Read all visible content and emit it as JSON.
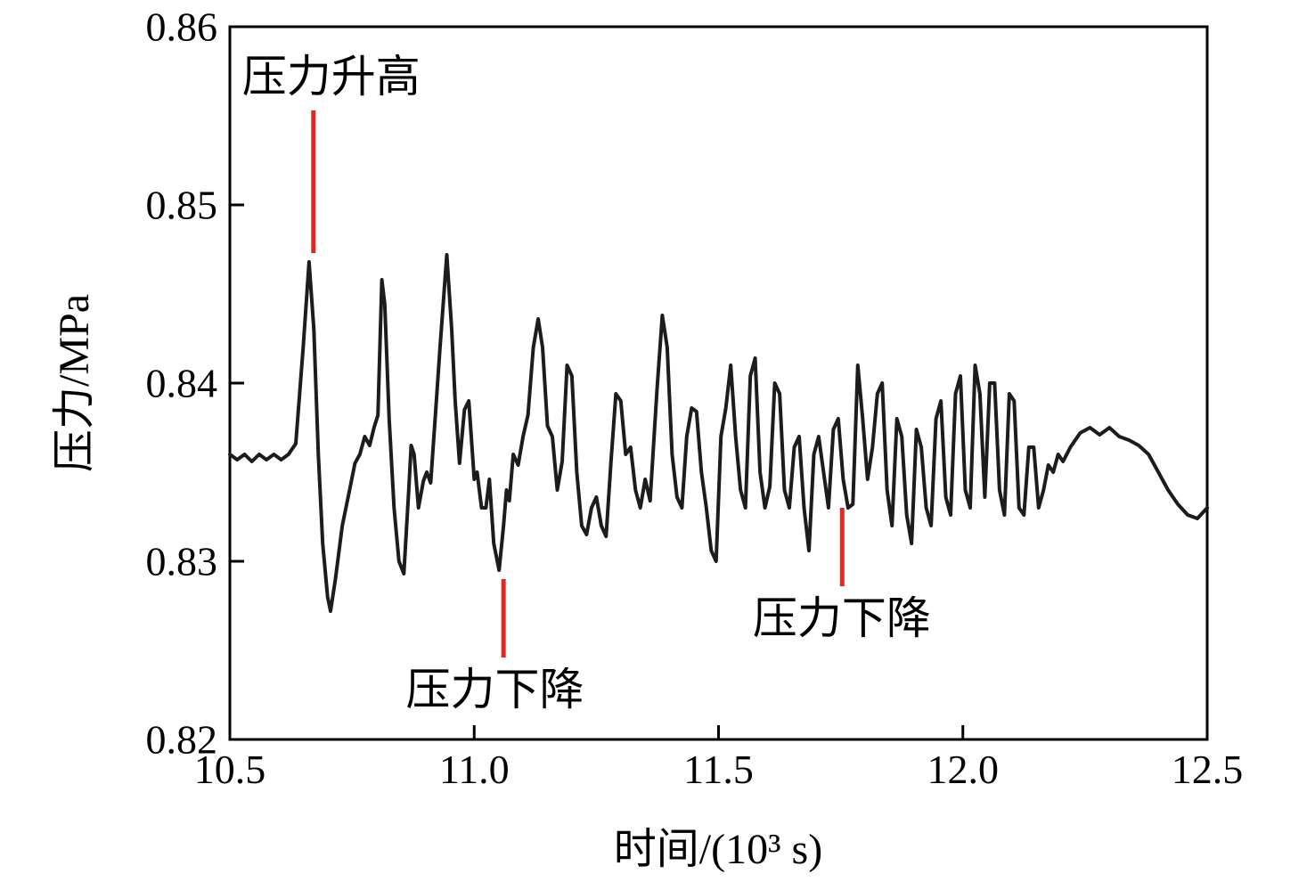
{
  "chart_data": {
    "type": "line",
    "title": "",
    "xlabel": "时间/(10³ s)",
    "ylabel": "压力/MPa",
    "xlim": [
      10.5,
      12.5
    ],
    "ylim": [
      0.82,
      0.86
    ],
    "x_ticks": [
      {
        "v": 10.5,
        "label": "10.5"
      },
      {
        "v": 11.0,
        "label": "11.0"
      },
      {
        "v": 11.5,
        "label": "11.5"
      },
      {
        "v": 12.0,
        "label": "12.0"
      },
      {
        "v": 12.5,
        "label": "12.5"
      }
    ],
    "y_ticks": [
      {
        "v": 0.82,
        "label": "0.82"
      },
      {
        "v": 0.83,
        "label": "0.83"
      },
      {
        "v": 0.84,
        "label": "0.84"
      },
      {
        "v": 0.85,
        "label": "0.85"
      },
      {
        "v": 0.86,
        "label": "0.86"
      }
    ],
    "line_color": "#1c1c1c",
    "grid": false,
    "legend": "none",
    "annotation_color": "#e8261f",
    "annotations": [
      {
        "text": "压力升高",
        "line": {
          "x": 10.671,
          "y1": 0.8553,
          "y2": 0.8473
        },
        "label": {
          "x": 10.525,
          "y": 0.8572
        }
      },
      {
        "text": "压力下降",
        "line": {
          "x": 11.06,
          "y1": 0.829,
          "y2": 0.8246
        },
        "label": {
          "x": 10.86,
          "y": 0.8228
        }
      },
      {
        "text": "压力下降",
        "line": {
          "x": 11.753,
          "y1": 0.833,
          "y2": 0.8286
        },
        "label": {
          "x": 11.57,
          "y": 0.8268
        }
      }
    ],
    "points": [
      [
        10.5,
        0.836
      ],
      [
        10.515,
        0.8357
      ],
      [
        10.53,
        0.836
      ],
      [
        10.545,
        0.8356
      ],
      [
        10.56,
        0.836
      ],
      [
        10.575,
        0.8357
      ],
      [
        10.59,
        0.836
      ],
      [
        10.605,
        0.8357
      ],
      [
        10.62,
        0.836
      ],
      [
        10.635,
        0.8366
      ],
      [
        10.65,
        0.842
      ],
      [
        10.662,
        0.8468
      ],
      [
        10.672,
        0.843
      ],
      [
        10.681,
        0.836
      ],
      [
        10.69,
        0.831
      ],
      [
        10.7,
        0.828
      ],
      [
        10.706,
        0.8272
      ],
      [
        10.716,
        0.829
      ],
      [
        10.73,
        0.832
      ],
      [
        10.745,
        0.834
      ],
      [
        10.756,
        0.8355
      ],
      [
        10.766,
        0.836
      ],
      [
        10.776,
        0.837
      ],
      [
        10.786,
        0.8365
      ],
      [
        10.795,
        0.8375
      ],
      [
        10.803,
        0.8382
      ],
      [
        10.811,
        0.8458
      ],
      [
        10.817,
        0.8444
      ],
      [
        10.826,
        0.838
      ],
      [
        10.836,
        0.833
      ],
      [
        10.846,
        0.83
      ],
      [
        10.856,
        0.8293
      ],
      [
        10.866,
        0.834
      ],
      [
        10.871,
        0.8365
      ],
      [
        10.877,
        0.836
      ],
      [
        10.886,
        0.833
      ],
      [
        10.896,
        0.8345
      ],
      [
        10.903,
        0.835
      ],
      [
        10.911,
        0.8344
      ],
      [
        10.92,
        0.838
      ],
      [
        10.93,
        0.842
      ],
      [
        10.944,
        0.8472
      ],
      [
        10.954,
        0.843
      ],
      [
        10.961,
        0.839
      ],
      [
        10.97,
        0.8355
      ],
      [
        10.98,
        0.8385
      ],
      [
        10.989,
        0.839
      ],
      [
        11.0,
        0.8346
      ],
      [
        11.006,
        0.835
      ],
      [
        11.015,
        0.833
      ],
      [
        11.024,
        0.833
      ],
      [
        11.031,
        0.8346
      ],
      [
        11.04,
        0.831
      ],
      [
        11.051,
        0.8295
      ],
      [
        11.06,
        0.832
      ],
      [
        11.066,
        0.834
      ],
      [
        11.072,
        0.8334
      ],
      [
        11.08,
        0.836
      ],
      [
        11.09,
        0.8354
      ],
      [
        11.1,
        0.837
      ],
      [
        11.11,
        0.8382
      ],
      [
        11.121,
        0.842
      ],
      [
        11.131,
        0.8436
      ],
      [
        11.14,
        0.842
      ],
      [
        11.15,
        0.8376
      ],
      [
        11.16,
        0.837
      ],
      [
        11.17,
        0.834
      ],
      [
        11.18,
        0.8356
      ],
      [
        11.19,
        0.841
      ],
      [
        11.2,
        0.8404
      ],
      [
        11.21,
        0.835
      ],
      [
        11.22,
        0.832
      ],
      [
        11.23,
        0.8315
      ],
      [
        11.24,
        0.833
      ],
      [
        11.25,
        0.8336
      ],
      [
        11.26,
        0.832
      ],
      [
        11.27,
        0.8314
      ],
      [
        11.28,
        0.8356
      ],
      [
        11.29,
        0.8394
      ],
      [
        11.3,
        0.839
      ],
      [
        11.31,
        0.836
      ],
      [
        11.32,
        0.8364
      ],
      [
        11.33,
        0.834
      ],
      [
        11.34,
        0.833
      ],
      [
        11.35,
        0.8346
      ],
      [
        11.36,
        0.8334
      ],
      [
        11.374,
        0.8396
      ],
      [
        11.385,
        0.8438
      ],
      [
        11.395,
        0.842
      ],
      [
        11.405,
        0.836
      ],
      [
        11.415,
        0.8336
      ],
      [
        11.425,
        0.833
      ],
      [
        11.435,
        0.837
      ],
      [
        11.445,
        0.8386
      ],
      [
        11.455,
        0.8384
      ],
      [
        11.465,
        0.835
      ],
      [
        11.475,
        0.833
      ],
      [
        11.485,
        0.8306
      ],
      [
        11.495,
        0.83
      ],
      [
        11.505,
        0.837
      ],
      [
        11.515,
        0.8386
      ],
      [
        11.525,
        0.841
      ],
      [
        11.535,
        0.837
      ],
      [
        11.545,
        0.834
      ],
      [
        11.555,
        0.833
      ],
      [
        11.565,
        0.8404
      ],
      [
        11.575,
        0.8414
      ],
      [
        11.585,
        0.835
      ],
      [
        11.595,
        0.833
      ],
      [
        11.605,
        0.8342
      ],
      [
        11.615,
        0.84
      ],
      [
        11.625,
        0.8394
      ],
      [
        11.635,
        0.834
      ],
      [
        11.645,
        0.833
      ],
      [
        11.655,
        0.8364
      ],
      [
        11.665,
        0.837
      ],
      [
        11.675,
        0.833
      ],
      [
        11.685,
        0.8306
      ],
      [
        11.695,
        0.836
      ],
      [
        11.705,
        0.837
      ],
      [
        11.715,
        0.835
      ],
      [
        11.725,
        0.833
      ],
      [
        11.735,
        0.8374
      ],
      [
        11.745,
        0.838
      ],
      [
        11.755,
        0.8346
      ],
      [
        11.765,
        0.833
      ],
      [
        11.775,
        0.8332
      ],
      [
        11.785,
        0.841
      ],
      [
        11.795,
        0.838
      ],
      [
        11.805,
        0.8346
      ],
      [
        11.815,
        0.8364
      ],
      [
        11.825,
        0.8394
      ],
      [
        11.835,
        0.84
      ],
      [
        11.845,
        0.834
      ],
      [
        11.855,
        0.832
      ],
      [
        11.865,
        0.838
      ],
      [
        11.875,
        0.837
      ],
      [
        11.885,
        0.8326
      ],
      [
        11.895,
        0.831
      ],
      [
        11.905,
        0.8374
      ],
      [
        11.915,
        0.8364
      ],
      [
        11.925,
        0.833
      ],
      [
        11.935,
        0.832
      ],
      [
        11.945,
        0.838
      ],
      [
        11.955,
        0.839
      ],
      [
        11.965,
        0.8336
      ],
      [
        11.975,
        0.8326
      ],
      [
        11.985,
        0.8394
      ],
      [
        11.995,
        0.8404
      ],
      [
        12.005,
        0.834
      ],
      [
        12.015,
        0.833
      ],
      [
        12.025,
        0.841
      ],
      [
        12.035,
        0.8394
      ],
      [
        12.045,
        0.8336
      ],
      [
        12.055,
        0.84
      ],
      [
        12.065,
        0.84
      ],
      [
        12.075,
        0.834
      ],
      [
        12.085,
        0.8326
      ],
      [
        12.095,
        0.8394
      ],
      [
        12.105,
        0.839
      ],
      [
        12.115,
        0.833
      ],
      [
        12.125,
        0.8326
      ],
      [
        12.135,
        0.8364
      ],
      [
        12.145,
        0.8364
      ],
      [
        12.155,
        0.833
      ],
      [
        12.165,
        0.834
      ],
      [
        12.175,
        0.8354
      ],
      [
        12.185,
        0.835
      ],
      [
        12.195,
        0.836
      ],
      [
        12.205,
        0.8356
      ],
      [
        12.22,
        0.8364
      ],
      [
        12.24,
        0.8372
      ],
      [
        12.26,
        0.8375
      ],
      [
        12.28,
        0.8371
      ],
      [
        12.3,
        0.8375
      ],
      [
        12.32,
        0.837
      ],
      [
        12.34,
        0.8368
      ],
      [
        12.36,
        0.8365
      ],
      [
        12.38,
        0.836
      ],
      [
        12.4,
        0.835
      ],
      [
        12.42,
        0.834
      ],
      [
        12.44,
        0.8332
      ],
      [
        12.46,
        0.8326
      ],
      [
        12.48,
        0.8324
      ],
      [
        12.5,
        0.833
      ]
    ]
  }
}
